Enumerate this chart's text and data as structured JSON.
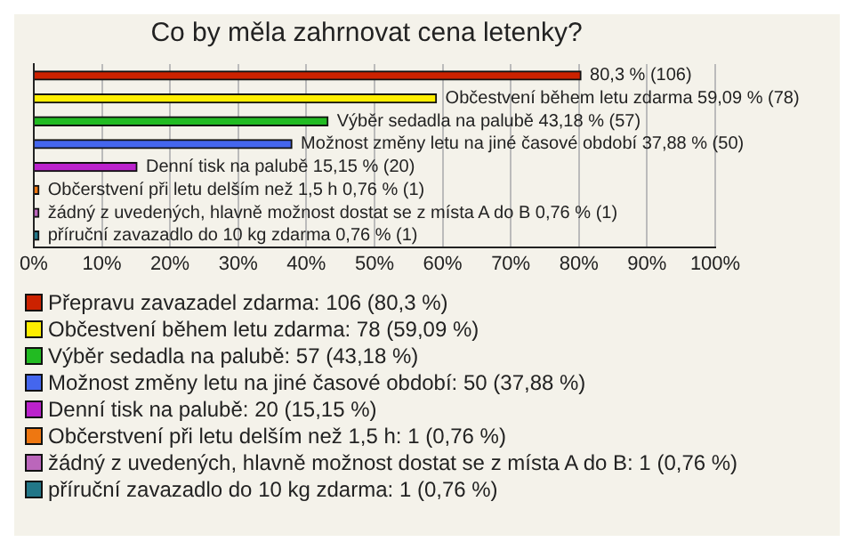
{
  "chart_data": {
    "type": "bar",
    "orientation": "horizontal",
    "title": "Co by měla zahrnovat cena letenky?",
    "categories": [
      null,
      null,
      null,
      null,
      null,
      null,
      null,
      null
    ],
    "series": [
      {
        "name": "Přepravu zavazadel zdarma: 106 (80,3 %)",
        "color": "#cc2200",
        "values": [
          80.3,
          null,
          null,
          null,
          null,
          null,
          null,
          null
        ],
        "value_labels": [
          "80,3 % (106)",
          null,
          null,
          null,
          null,
          null,
          null,
          null
        ]
      },
      {
        "name": "Občestvení během letu zdarma: 78 (59,09 %)",
        "color": "#ffee00",
        "values": [
          null,
          59.09,
          null,
          null,
          null,
          null,
          null,
          null
        ],
        "value_labels": [
          null,
          "Občestvení během letu zdarma 59,09 % (78)",
          null,
          null,
          null,
          null,
          null,
          null
        ]
      },
      {
        "name": "Výběr sedadla na palubě: 57 (43,18 %)",
        "color": "#22bb22",
        "values": [
          null,
          null,
          43.18,
          null,
          null,
          null,
          null,
          null
        ],
        "value_labels": [
          null,
          null,
          "Výběr sedadla na palubě 43,18 % (57)",
          null,
          null,
          null,
          null,
          null
        ]
      },
      {
        "name": "Možnost změny letu na jiné časové období: 50 (37,88 %)",
        "color": "#4466ee",
        "values": [
          null,
          null,
          null,
          37.88,
          null,
          null,
          null,
          null
        ],
        "value_labels": [
          null,
          null,
          null,
          "Možnost změny letu na jiné časové období 37,88 % (50)",
          null,
          null,
          null,
          null
        ]
      },
      {
        "name": "Denní tisk na palubě: 20 (15,15 %)",
        "color": "#bb22cc",
        "values": [
          null,
          null,
          null,
          null,
          15.15,
          null,
          null,
          null
        ],
        "value_labels": [
          null,
          null,
          null,
          null,
          "Denní tisk na palubě 15,15 % (20)",
          null,
          null,
          null
        ]
      },
      {
        "name": "Občerstvení při letu delším než 1,5 h: 1 (0,76 %)",
        "color": "#ee7711",
        "values": [
          null,
          null,
          null,
          null,
          null,
          0.76,
          null,
          null
        ],
        "value_labels": [
          null,
          null,
          null,
          null,
          null,
          "Občerstvení při letu delším než 1,5 h 0,76 % (1)",
          null,
          null
        ]
      },
      {
        "name": "žádný z uvedených, hlavně možnost dostat se z místa A do B: 1 (0,76 %)",
        "color": "#bb66bb",
        "values": [
          null,
          null,
          null,
          null,
          null,
          null,
          0.76,
          null
        ],
        "value_labels": [
          null,
          null,
          null,
          null,
          null,
          null,
          "žádný z uvedených, hlavně možnost dostat se z místa A do B 0,76 % (1)",
          null
        ]
      },
      {
        "name": "příruční zavazadlo do 10 kg zdarma: 1 (0,76 %)",
        "color": "#227788",
        "values": [
          null,
          null,
          null,
          null,
          null,
          null,
          null,
          0.76
        ],
        "value_labels": [
          null,
          null,
          null,
          null,
          null,
          null,
          null,
          "příruční zavazadlo do 10 kg zdarma 0,76 % (1)"
        ]
      }
    ],
    "xlim": [
      0,
      100
    ],
    "xticks": [
      {
        "value": 0,
        "label": "0%"
      },
      {
        "value": 10,
        "label": "10%"
      },
      {
        "value": 20,
        "label": "20%"
      },
      {
        "value": 30,
        "label": "30%"
      },
      {
        "value": 40,
        "label": "40%"
      },
      {
        "value": 50,
        "label": "50%"
      },
      {
        "value": 60,
        "label": "60%"
      },
      {
        "value": 70,
        "label": "70%"
      },
      {
        "value": 80,
        "label": "80%"
      },
      {
        "value": 90,
        "label": "90%"
      },
      {
        "value": 100,
        "label": "100%"
      }
    ],
    "grid": "x",
    "tick_labels": "x",
    "legend": "bottom"
  }
}
